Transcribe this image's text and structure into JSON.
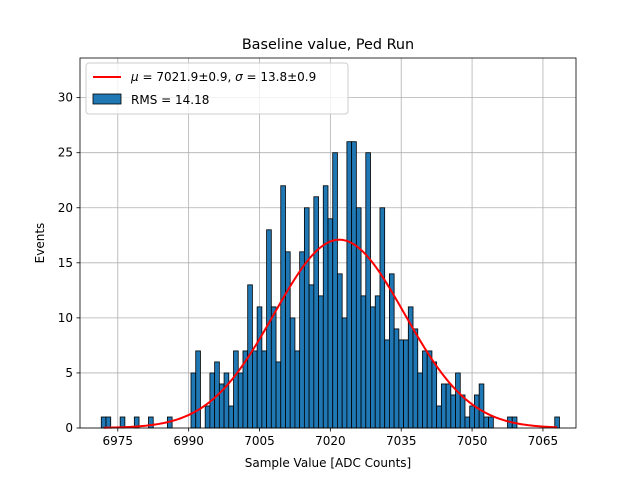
{
  "chart_data": {
    "type": "bar",
    "title": "Baseline value, Ped Run",
    "xlabel": "Sample Value [ADC Counts]",
    "ylabel": "Events",
    "xlim": [
      6967,
      7072
    ],
    "ylim": [
      0,
      33.6
    ],
    "xticks": [
      6975,
      6990,
      7005,
      7020,
      7035,
      7050,
      7065
    ],
    "yticks": [
      0,
      5,
      10,
      15,
      20,
      25,
      30
    ],
    "grid": true,
    "legend_position": "top-left",
    "bin_width": 1,
    "bins": {
      "x": [
        6972,
        6973,
        6976,
        6979,
        6982,
        6986,
        6991,
        6992,
        6994,
        6995,
        6996,
        6997,
        6998,
        6999,
        7000,
        7001,
        7002,
        7003,
        7004,
        7005,
        7006,
        7007,
        7008,
        7009,
        7010,
        7011,
        7012,
        7013,
        7014,
        7015,
        7016,
        7017,
        7018,
        7019,
        7020,
        7021,
        7022,
        7023,
        7024,
        7025,
        7026,
        7027,
        7028,
        7029,
        7030,
        7031,
        7032,
        7033,
        7034,
        7035,
        7036,
        7037,
        7038,
        7039,
        7040,
        7041,
        7042,
        7043,
        7044,
        7045,
        7046,
        7047,
        7048,
        7049,
        7050,
        7051,
        7052,
        7053,
        7054,
        7058,
        7059,
        7068
      ],
      "counts": [
        1,
        1,
        1,
        1,
        1,
        1,
        5,
        7,
        2,
        5,
        6,
        4,
        5,
        2,
        7,
        5,
        7,
        13,
        7,
        11,
        7,
        18,
        11,
        6,
        22,
        16,
        10,
        7,
        16,
        20,
        13,
        21,
        12,
        22,
        19,
        25,
        14,
        10,
        26,
        26,
        20,
        12,
        25,
        11,
        12,
        20,
        8,
        14,
        9,
        8,
        8,
        11,
        9,
        5,
        7,
        7,
        6,
        2,
        4,
        4,
        3,
        5,
        3,
        1,
        2,
        3,
        4,
        1,
        1,
        1,
        1,
        1
      ]
    },
    "series": [
      {
        "name": "RMS = 14.18",
        "type": "histogram",
        "color": "#1f77b4",
        "edgecolor": "#000000"
      },
      {
        "name": "μ = 7021.9±0.9, σ = 13.8±0.9",
        "type": "gaussian_fit",
        "mu": 7021.9,
        "sigma": 13.8,
        "amplitude": 17.1,
        "color": "#ff0000"
      }
    ],
    "legend": {
      "fit_label_parts": {
        "mu_symbol": "μ",
        "mu_text": " = 7021.9±0.9, ",
        "sigma_symbol": "σ",
        "sigma_text": " = 13.8±0.9"
      },
      "hist_label": "RMS = 14.18"
    }
  }
}
